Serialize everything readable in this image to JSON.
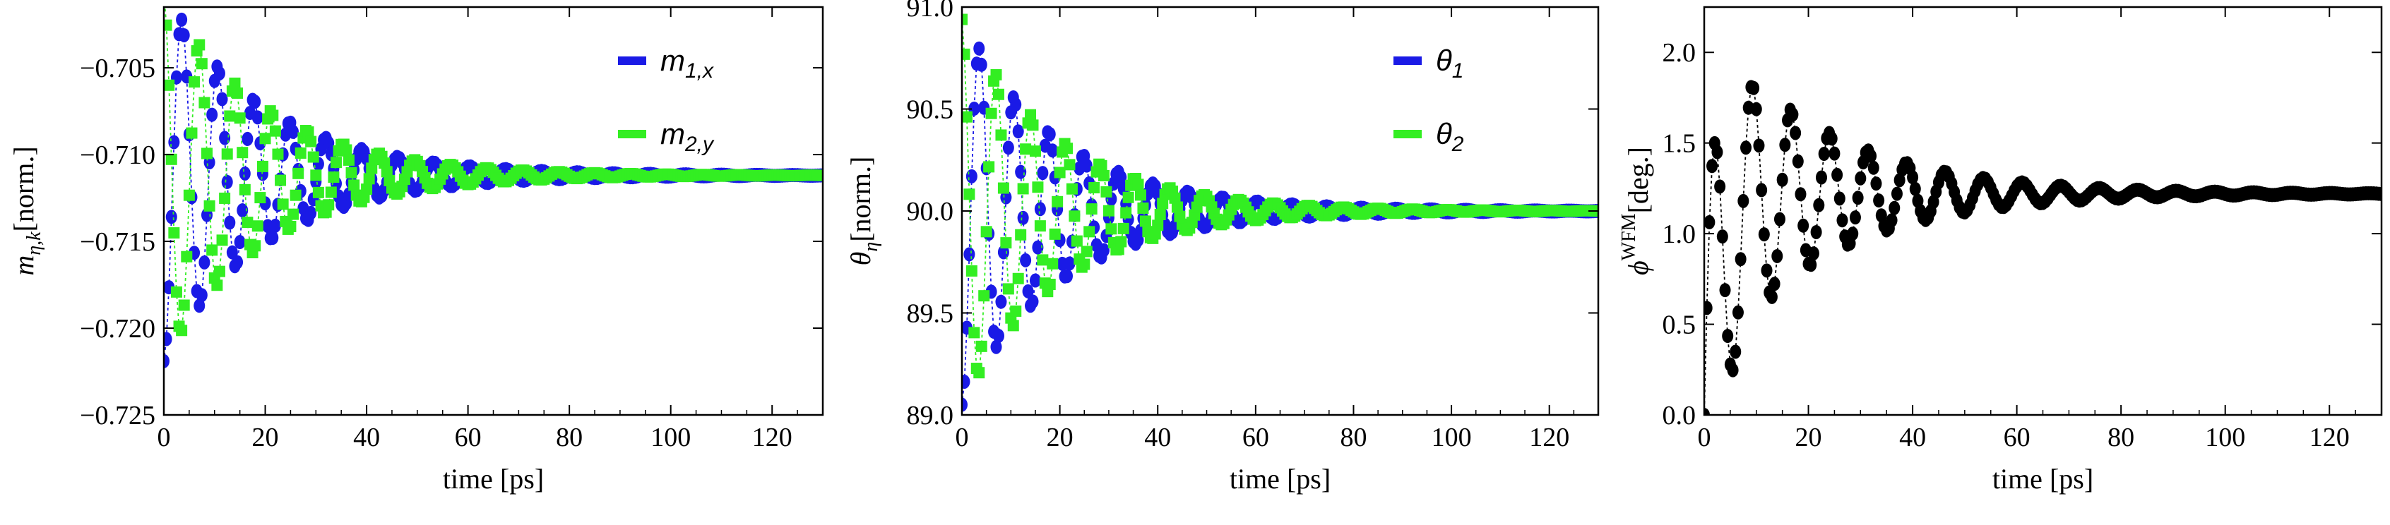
{
  "chart_data": [
    {
      "type": "scatter",
      "name": "m-components",
      "xlabel": "time [ps]",
      "ylabel_base": "m",
      "ylabel_sub": "η,k",
      "ylabel_unit": "[norm.]",
      "xlim": [
        0,
        130
      ],
      "ylim": [
        -0.725,
        -0.7015
      ],
      "xticks": [
        0,
        20,
        40,
        60,
        80,
        100,
        120
      ],
      "yticks": [
        -0.725,
        -0.72,
        -0.715,
        -0.71,
        -0.705
      ],
      "ytick_labels": [
        "−0.725",
        "−0.720",
        "−0.715",
        "−0.710",
        "−0.705"
      ],
      "legend": [
        {
          "base": "m",
          "sub": "1,x",
          "color": "#1a1ae6"
        },
        {
          "base": "m",
          "sub": "2,y",
          "color": "#33ee22"
        }
      ],
      "signal": {
        "equilibrium": -0.7112,
        "amp1": -0.0107,
        "amp2": 0.0107,
        "phase2": 0.15,
        "period_ps": 7.1,
        "tau_ps": 20,
        "t_end": 130,
        "dt": 0.5
      }
    },
    {
      "type": "scatter",
      "name": "theta-angles",
      "xlabel": "time [ps]",
      "ylabel_base": "θ",
      "ylabel_sub": "η",
      "ylabel_unit": "[norm.]",
      "xlim": [
        0,
        130
      ],
      "ylim": [
        89.0,
        91.0
      ],
      "xticks": [
        0,
        20,
        40,
        60,
        80,
        100,
        120
      ],
      "yticks": [
        89.0,
        89.5,
        90.0,
        90.5,
        91.0
      ],
      "ytick_labels": [
        "89.0",
        "89.5",
        "90.0",
        "90.5",
        "91.0"
      ],
      "legend": [
        {
          "base": "θ",
          "sub": "1",
          "color": "#1a1ae6"
        },
        {
          "base": "θ",
          "sub": "2",
          "color": "#33ee22"
        }
      ],
      "signal": {
        "equilibrium": 90.0,
        "amp1": -0.95,
        "amp2": 0.95,
        "phase2": 0.15,
        "period_ps": 7.1,
        "tau_ps": 20,
        "t_end": 130,
        "dt": 0.5
      }
    },
    {
      "type": "scatter",
      "name": "phi-wfm",
      "xlabel": "time [ps]",
      "ylabel_base": "ϕ",
      "ylabel_sup": "WFM",
      "ylabel_unit": "[deg.]",
      "xlim": [
        0,
        130
      ],
      "ylim": [
        0,
        2.25
      ],
      "xticks": [
        0,
        20,
        40,
        60,
        80,
        100,
        120
      ],
      "yticks": [
        0,
        0.5,
        1.0,
        1.5,
        2.0
      ],
      "ytick_labels": [
        "0.0",
        "0.5",
        "1.0",
        "1.5",
        "2.0"
      ],
      "series_color": "#000000",
      "signal": {
        "equilibrium": 1.22,
        "amp": 1.0,
        "period_ps": 7.4,
        "tau_ps": 22,
        "t_end": 130,
        "dt": 0.5
      }
    }
  ]
}
